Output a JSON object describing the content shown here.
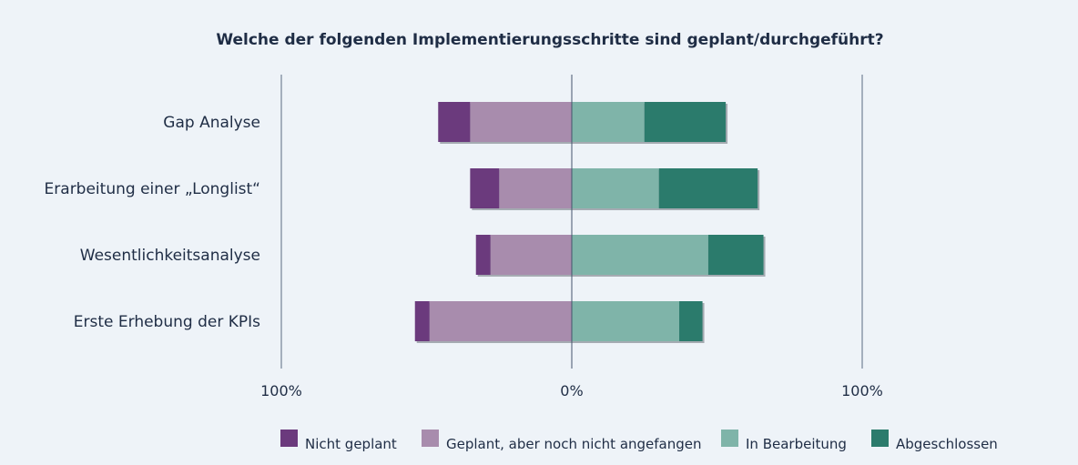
{
  "chart_data": {
    "type": "bar",
    "orientation": "horizontal",
    "stacking": "diverging",
    "title": "Welche der folgenden Implementierungsschritte sind geplant/durchgeführt?",
    "categories": [
      "Gap Analyse",
      "Erarbeitung einer „Longlist“",
      "Wesentlichkeitsanalyse",
      "Erste Erhebung der KPIs"
    ],
    "series": [
      {
        "name": "Nicht geplant",
        "side": "negative",
        "color": "#6b3a7d",
        "values": [
          11,
          10,
          5,
          5
        ]
      },
      {
        "name": "Geplant, aber noch nicht angefangen",
        "side": "negative",
        "color": "#a88cad",
        "values": [
          35,
          25,
          28,
          49
        ]
      },
      {
        "name": "In Bearbeitung",
        "side": "positive",
        "color": "#7fb4a9",
        "values": [
          25,
          30,
          47,
          37
        ]
      },
      {
        "name": "Abgeschlossen",
        "side": "positive",
        "color": "#2b7b6c",
        "values": [
          28,
          34,
          19,
          8
        ]
      }
    ],
    "xlim": [
      -100,
      100
    ],
    "x_ticks": [
      {
        "value": -100,
        "label": "100%"
      },
      {
        "value": 0,
        "label": "0%"
      },
      {
        "value": 100,
        "label": "100%"
      }
    ],
    "legend_position": "bottom"
  }
}
